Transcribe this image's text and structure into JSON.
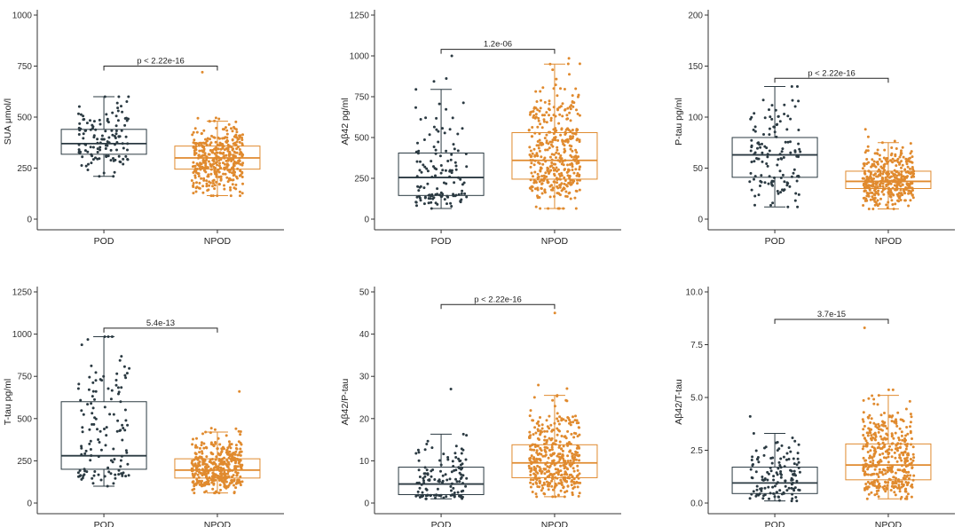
{
  "colors": {
    "POD": "#2b3a42",
    "NPOD": "#e08a2e",
    "axis": "#333333"
  },
  "chart_data": [
    {
      "type": "boxplot",
      "ylabel": "SUA μmol/l",
      "ylim": [
        0,
        1000
      ],
      "yticks": [
        0,
        250,
        500,
        750,
        1000
      ],
      "ytick_labels": [
        "0",
        "250",
        "500",
        "750",
        "1000"
      ],
      "categories": [
        "POD",
        "NPOD"
      ],
      "significance": "p < 2.22e-16",
      "sig_y": 750,
      "series": [
        {
          "name": "POD",
          "n": 130,
          "whisker_low": 210,
          "q1": 318,
          "median": 370,
          "q3": 440,
          "whisker_high": 600,
          "points_min": 210,
          "points_max": 600
        },
        {
          "name": "NPOD",
          "n": 400,
          "whisker_low": 115,
          "q1": 245,
          "median": 300,
          "q3": 358,
          "whisker_high": 480,
          "points_min": 115,
          "points_max": 720
        }
      ]
    },
    {
      "type": "boxplot",
      "ylabel": "Aβ42 pg/ml",
      "ylim": [
        0,
        1250
      ],
      "yticks": [
        0,
        250,
        500,
        750,
        1000,
        1250
      ],
      "ytick_labels": [
        "0",
        "250",
        "500",
        "750",
        "1000",
        "1250"
      ],
      "categories": [
        "POD",
        "NPOD"
      ],
      "significance": "1.2e-06",
      "sig_y": 1040,
      "series": [
        {
          "name": "POD",
          "n": 130,
          "whisker_low": 65,
          "q1": 145,
          "median": 255,
          "q3": 405,
          "whisker_high": 795,
          "points_min": 65,
          "points_max": 1000
        },
        {
          "name": "NPOD",
          "n": 400,
          "whisker_low": 65,
          "q1": 245,
          "median": 360,
          "q3": 530,
          "whisker_high": 950,
          "points_min": 65,
          "points_max": 985
        }
      ]
    },
    {
      "type": "boxplot",
      "ylabel": "P-tau pg/ml",
      "ylim": [
        0,
        200
      ],
      "yticks": [
        0,
        50,
        100,
        150,
        200
      ],
      "ytick_labels": [
        "0",
        "50",
        "100",
        "150",
        "200"
      ],
      "categories": [
        "POD",
        "NPOD"
      ],
      "significance": "p < 2.22e-16",
      "sig_y": 138,
      "series": [
        {
          "name": "POD",
          "n": 130,
          "whisker_low": 12,
          "q1": 41,
          "median": 63,
          "q3": 80,
          "whisker_high": 130,
          "points_min": 12,
          "points_max": 130
        },
        {
          "name": "NPOD",
          "n": 400,
          "whisker_low": 10,
          "q1": 30,
          "median": 37,
          "q3": 47,
          "whisker_high": 75,
          "points_min": 10,
          "points_max": 88
        }
      ]
    },
    {
      "type": "boxplot",
      "ylabel": "T-tau pg/ml",
      "ylim": [
        0,
        1250
      ],
      "yticks": [
        0,
        250,
        500,
        750,
        1000,
        1250
      ],
      "ytick_labels": [
        "0",
        "250",
        "500",
        "750",
        "1000",
        "1250"
      ],
      "categories": [
        "POD",
        "NPOD"
      ],
      "significance": "5.4e-13",
      "sig_y": 1035,
      "series": [
        {
          "name": "POD",
          "n": 130,
          "whisker_low": 100,
          "q1": 200,
          "median": 280,
          "q3": 600,
          "whisker_high": 985,
          "points_min": 100,
          "points_max": 985
        },
        {
          "name": "NPOD",
          "n": 400,
          "whisker_low": 60,
          "q1": 148,
          "median": 195,
          "q3": 262,
          "whisker_high": 420,
          "points_min": 60,
          "points_max": 660
        }
      ]
    },
    {
      "type": "boxplot",
      "ylabel": "Aβ42/P-tau",
      "ylim": [
        0,
        50
      ],
      "yticks": [
        0,
        10,
        20,
        30,
        40,
        50
      ],
      "ytick_labels": [
        "0",
        "10",
        "20",
        "30",
        "40",
        "50"
      ],
      "categories": [
        "POD",
        "NPOD"
      ],
      "significance": "p < 2.22e-16",
      "sig_y": 47,
      "series": [
        {
          "name": "POD",
          "n": 130,
          "whisker_low": 1,
          "q1": 2,
          "median": 4.5,
          "q3": 8.5,
          "whisker_high": 16.3,
          "points_min": 1,
          "points_max": 27
        },
        {
          "name": "NPOD",
          "n": 400,
          "whisker_low": 1.5,
          "q1": 6,
          "median": 9.5,
          "q3": 13.8,
          "whisker_high": 25.5,
          "points_min": 1.5,
          "points_max": 45
        }
      ]
    },
    {
      "type": "boxplot",
      "ylabel": "Aβ42/T-tau",
      "ylim": [
        0,
        10
      ],
      "yticks": [
        0,
        2.5,
        5,
        7.5,
        10
      ],
      "ytick_labels": [
        "0.0",
        "2.5",
        "5.0",
        "7.5",
        "10.0"
      ],
      "categories": [
        "POD",
        "NPOD"
      ],
      "significance": "3.7e-15",
      "sig_y": 8.7,
      "series": [
        {
          "name": "POD",
          "n": 130,
          "whisker_low": 0.1,
          "q1": 0.45,
          "median": 0.95,
          "q3": 1.7,
          "whisker_high": 3.3,
          "points_min": 0.1,
          "points_max": 4.1
        },
        {
          "name": "NPOD",
          "n": 400,
          "whisker_low": 0.2,
          "q1": 1.1,
          "median": 1.8,
          "q3": 2.8,
          "whisker_high": 5.1,
          "points_min": 0.2,
          "points_max": 8.3
        }
      ]
    }
  ]
}
